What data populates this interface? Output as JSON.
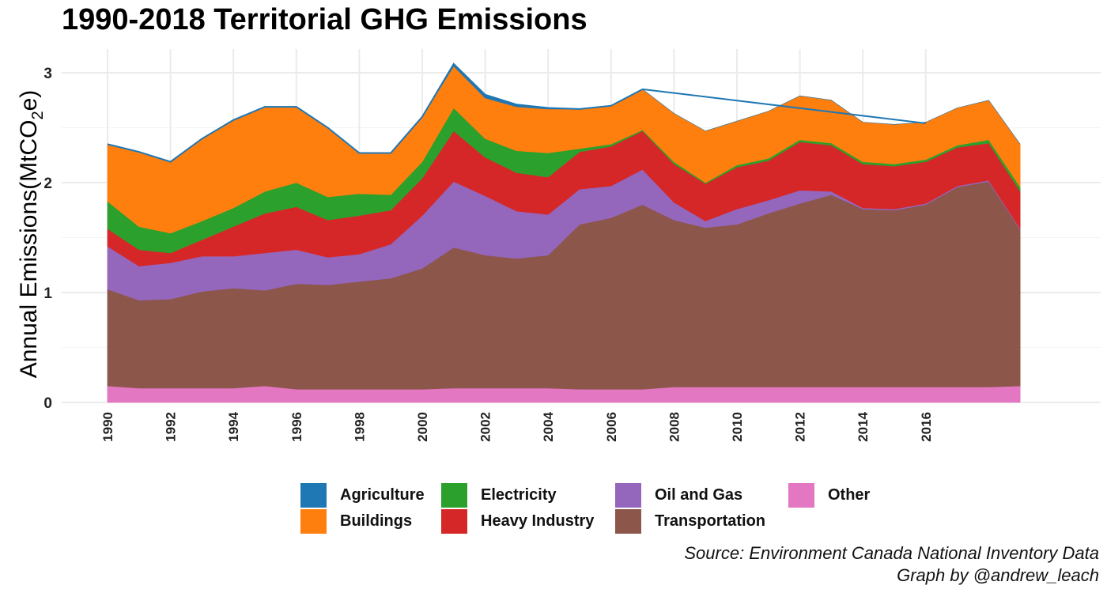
{
  "chart_data": {
    "type": "area",
    "stacked": true,
    "title": "1990-2018 Territorial GHG Emissions",
    "ylabel_main": "Annual Emissions",
    "ylabel_unit": "(MtCO",
    "ylabel_sub": "2",
    "ylabel_end": "e)",
    "xlabel": "",
    "x": [
      1990,
      1991,
      1992,
      1993,
      1994,
      1995,
      1996,
      1997,
      1998,
      1999,
      2000,
      2001,
      2002,
      2003,
      2004,
      2005,
      2006,
      2007,
      2008,
      2009,
      2010,
      2011,
      2012,
      2013,
      2014,
      2015,
      2016,
      2017,
      2018,
      2019
    ],
    "x_tick_values": [
      1990,
      1992,
      1994,
      1996,
      1998,
      2000,
      2002,
      2004,
      2006,
      2008,
      2010,
      2012,
      2014,
      2016
    ],
    "x_tick_labels": [
      "1990",
      "1992",
      "1994",
      "1996",
      "1998",
      "2000",
      "2002",
      "2004",
      "2006",
      "2008",
      "2010",
      "2012",
      "2014",
      "2016"
    ],
    "y_ticks": [
      0,
      1,
      2,
      3
    ],
    "y_tick_labels": [
      "0",
      "1",
      "2",
      "3"
    ],
    "ylim": [
      0,
      3.15
    ],
    "grid": true,
    "legend_position": "bottom",
    "series": [
      {
        "name": "Other",
        "color": "#e377c2",
        "values": [
          0.15,
          0.13,
          0.13,
          0.13,
          0.13,
          0.15,
          0.12,
          0.12,
          0.12,
          0.12,
          0.12,
          0.13,
          0.13,
          0.13,
          0.13,
          0.12,
          0.12,
          0.12,
          0.14,
          0.14,
          0.14,
          0.14,
          0.14,
          0.14,
          0.14,
          0.14,
          0.14,
          0.14,
          0.14,
          0.15
        ]
      },
      {
        "name": "Transportation",
        "color": "#8c564b",
        "values": [
          0.88,
          0.8,
          0.81,
          0.88,
          0.91,
          0.87,
          0.96,
          0.95,
          0.98,
          1.01,
          1.1,
          1.28,
          1.21,
          1.18,
          1.21,
          1.5,
          1.56,
          1.68,
          1.52,
          1.45,
          1.48,
          1.58,
          1.67,
          1.75,
          1.62,
          1.61,
          1.66,
          1.82,
          1.87,
          1.42
        ]
      },
      {
        "name": "Oil and Gas",
        "color": "#9467bd",
        "values": [
          0.39,
          0.31,
          0.33,
          0.32,
          0.29,
          0.34,
          0.31,
          0.25,
          0.25,
          0.31,
          0.48,
          0.6,
          0.54,
          0.43,
          0.37,
          0.32,
          0.29,
          0.32,
          0.16,
          0.06,
          0.14,
          0.12,
          0.12,
          0.03,
          0.01,
          0.01,
          0.01,
          0.01,
          0.01,
          0.01
        ]
      },
      {
        "name": "Heavy Industry",
        "color": "#d62728",
        "values": [
          0.16,
          0.15,
          0.09,
          0.15,
          0.27,
          0.36,
          0.39,
          0.34,
          0.35,
          0.31,
          0.34,
          0.46,
          0.35,
          0.35,
          0.34,
          0.34,
          0.36,
          0.35,
          0.35,
          0.34,
          0.38,
          0.36,
          0.44,
          0.42,
          0.4,
          0.39,
          0.38,
          0.35,
          0.34,
          0.34
        ]
      },
      {
        "name": "Electricity",
        "color": "#2ca02c",
        "values": [
          0.25,
          0.21,
          0.18,
          0.17,
          0.17,
          0.2,
          0.22,
          0.21,
          0.2,
          0.14,
          0.15,
          0.21,
          0.17,
          0.2,
          0.22,
          0.03,
          0.02,
          0.01,
          0.02,
          0.01,
          0.02,
          0.02,
          0.02,
          0.02,
          0.02,
          0.02,
          0.02,
          0.02,
          0.03,
          0.04
        ]
      },
      {
        "name": "Buildings",
        "color": "#ff7f0e",
        "values": [
          0.52,
          0.68,
          0.65,
          0.75,
          0.8,
          0.77,
          0.69,
          0.63,
          0.37,
          0.38,
          0.41,
          0.38,
          0.37,
          0.4,
          0.4,
          0.36,
          0.35,
          0.37,
          0.44,
          0.47,
          0.4,
          0.43,
          0.4,
          0.39,
          0.36,
          0.36,
          0.34,
          0.34,
          0.36,
          0.39
        ]
      },
      {
        "name": "Agriculture",
        "color": "#1f77b4",
        "values": [
          0.0,
          0.0,
          0.0,
          0.0,
          0.0,
          0.0,
          0.0,
          0.0,
          0.0,
          0.0,
          0.0,
          0.02,
          0.03,
          0.02,
          0.01,
          0.0,
          0.0,
          0.0,
          0.0,
          0.0,
          0.0,
          0.0,
          0.0,
          0.0,
          0.0,
          0.0,
          0.0,
          0.0,
          0.0,
          0.0
        ]
      }
    ],
    "agriculture_line": {
      "x": [
        2007,
        2016
      ],
      "y": [
        2.85,
        2.54
      ],
      "color": "#1f77b4"
    }
  },
  "legend": {
    "items": [
      {
        "label": "Agriculture",
        "color": "#1f77b4"
      },
      {
        "label": "Buildings",
        "color": "#ff7f0e"
      },
      {
        "label": "Electricity",
        "color": "#2ca02c"
      },
      {
        "label": "Heavy Industry",
        "color": "#d62728"
      },
      {
        "label": "Oil and Gas",
        "color": "#9467bd"
      },
      {
        "label": "Transportation",
        "color": "#8c564b"
      },
      {
        "label": "Other",
        "color": "#e377c2"
      }
    ]
  },
  "caption": {
    "source": "Source: Environment Canada National Inventory Data",
    "credit": "Graph by @andrew_leach"
  }
}
